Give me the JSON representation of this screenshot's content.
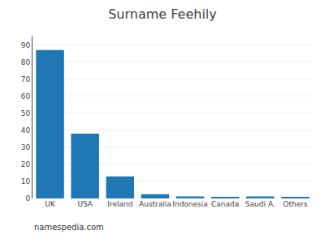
{
  "chart_data": {
    "type": "bar",
    "title": "Surname Feehily",
    "categories": [
      "UK",
      "USA",
      "Ireland",
      "Australia",
      "Indonesia",
      "Canada",
      "Saudi A.",
      "Others"
    ],
    "values": [
      87,
      38,
      13,
      2.5,
      1.2,
      1.0,
      1.2,
      1.0
    ],
    "ylim": [
      0,
      95
    ],
    "yticks": [
      0,
      10,
      20,
      30,
      40,
      50,
      60,
      70,
      80,
      90
    ],
    "grid": true,
    "annotations": [
      "namespedia.com"
    ]
  }
}
